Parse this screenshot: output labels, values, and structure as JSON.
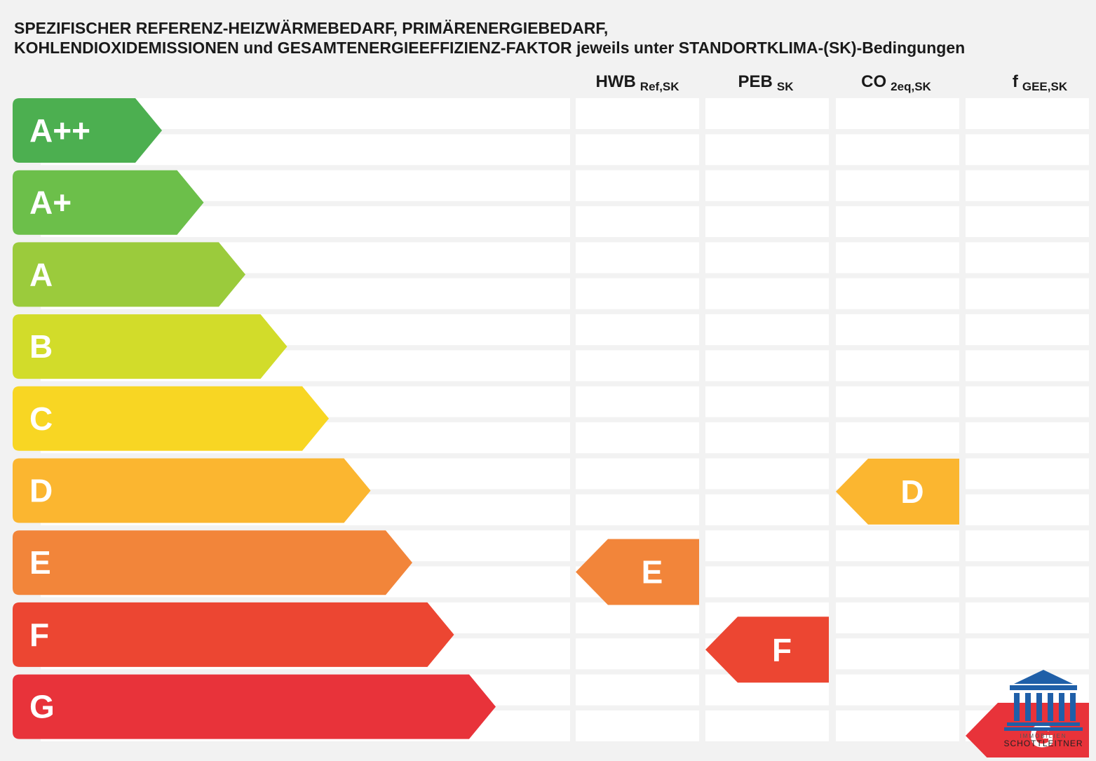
{
  "chart_data": {
    "type": "table",
    "title_lines": [
      "SPEZIFISCHER REFERENZ-HEIZWÄRMEBEDARF, PRIMÄRENERGIEBEDARF,",
      "KOHLENDIOXIDEMISSIONEN und GESAMTENERGIEEFFIZIENZ-FAKTOR jeweils unter STANDORTKLIMA-(SK)-Bedingungen"
    ],
    "classes": [
      "A++",
      "A+",
      "A",
      "B",
      "C",
      "D",
      "E",
      "F",
      "G"
    ],
    "class_colors": [
      "#4caf50",
      "#6cbf4a",
      "#9bcb3c",
      "#d2dc2a",
      "#f8d623",
      "#fbb630",
      "#f2853a",
      "#ec4632",
      "#e8333a"
    ],
    "columns": [
      {
        "label": "HWB",
        "sub": "Ref,SK"
      },
      {
        "label": "PEB",
        "sub": "SK"
      },
      {
        "label": "CO",
        "sub": "2eq,SK"
      },
      {
        "label": "f",
        "sub": "GEE,SK"
      }
    ],
    "ratings": [
      {
        "column": "HWB",
        "class": "E",
        "color": "#f2853a"
      },
      {
        "column": "PEB",
        "class": "F",
        "color": "#ec4632"
      },
      {
        "column": "CO",
        "class": "D",
        "color": "#fbb630"
      },
      {
        "column": "f",
        "class": "G",
        "color": "#e8333a"
      }
    ],
    "logo": {
      "text_top": "IMMOBILIEN",
      "text_bottom": "SCHOTTLEITNER",
      "color": "#1f5fa8"
    }
  }
}
